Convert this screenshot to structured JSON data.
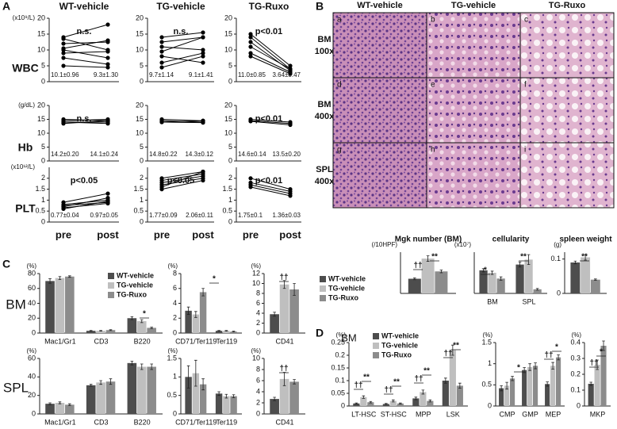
{
  "panels": [
    "A",
    "B",
    "C",
    "D"
  ],
  "histology": {
    "columns": [
      "WT-vehicle",
      "TG-vehicle",
      "TG-Ruxo"
    ],
    "rows": [
      [
        "BM",
        "100x"
      ],
      [
        "BM",
        "400x"
      ],
      [
        "SPL",
        "400x"
      ]
    ],
    "cells": [
      "a",
      "b",
      "c",
      "d",
      "e",
      "f",
      "g",
      "h",
      "i"
    ]
  },
  "chart_data": [
    {
      "type": "line",
      "title": "WT-vehicle",
      "ylabel": "WBC",
      "unit": "(x10⁹/L)",
      "annotation": "n.s.",
      "stats": [
        "10.1±0.96",
        "9.3±1.30"
      ],
      "ylim": [
        0,
        20
      ],
      "yticks": [
        0,
        5,
        10,
        15,
        20
      ],
      "color": "#000000",
      "series": [
        {
          "values": [
            14,
            18
          ]
        },
        {
          "values": [
            13.5,
            10
          ]
        },
        {
          "values": [
            12,
            12.5
          ]
        },
        {
          "values": [
            10.5,
            13
          ]
        },
        {
          "values": [
            10,
            7.5
          ]
        },
        {
          "values": [
            9,
            9.5
          ]
        },
        {
          "values": [
            7.5,
            5.5
          ]
        },
        {
          "values": [
            5,
            4.5
          ]
        }
      ]
    },
    {
      "type": "line",
      "title": "TG-vehicle",
      "annotation": "n.s.",
      "stats": [
        "9.7±1.14",
        "9.1±1.41"
      ],
      "ylim": [
        0,
        20
      ],
      "yticks": [
        0,
        5,
        10,
        15,
        20
      ],
      "color": "#000000",
      "series": [
        {
          "values": [
            14,
            15.5
          ]
        },
        {
          "values": [
            12.5,
            14
          ]
        },
        {
          "values": [
            11,
            10
          ]
        },
        {
          "values": [
            9.5,
            14
          ]
        },
        {
          "values": [
            8,
            6
          ]
        },
        {
          "values": [
            6,
            9
          ]
        },
        {
          "values": [
            4.5,
            8
          ]
        }
      ]
    },
    {
      "type": "line",
      "title": "TG-Ruxo",
      "annotation": "p<0.01",
      "stats": [
        "11.0±0.85",
        "3.64±0.47"
      ],
      "ylim": [
        0,
        20
      ],
      "yticks": [
        0,
        5,
        10,
        15,
        20
      ],
      "color": "#000000",
      "series": [
        {
          "values": [
            15,
            5
          ]
        },
        {
          "values": [
            14,
            4
          ]
        },
        {
          "values": [
            12.5,
            3.5
          ]
        },
        {
          "values": [
            11,
            4
          ]
        },
        {
          "values": [
            9,
            3
          ]
        },
        {
          "values": [
            8,
            2.5
          ]
        }
      ]
    },
    {
      "type": "line",
      "ylabel": "Hb",
      "unit": "(g/dL)",
      "annotation": "n.s.",
      "stats": [
        "14.2±0.20",
        "14.1±0.24"
      ],
      "ylim": [
        0,
        20
      ],
      "yticks": [
        0,
        5,
        10,
        15,
        20
      ],
      "color": "#000000",
      "series": [
        {
          "values": [
            15,
            14.5
          ]
        },
        {
          "values": [
            14.5,
            15
          ]
        },
        {
          "values": [
            14,
            14
          ]
        },
        {
          "values": [
            13.5,
            14.5
          ]
        },
        {
          "values": [
            14,
            13.5
          ]
        }
      ]
    },
    {
      "type": "line",
      "stats": [
        "14.8±0.22",
        "14.3±0.12"
      ],
      "ylim": [
        0,
        20
      ],
      "yticks": [
        0,
        5,
        10,
        15,
        20
      ],
      "color": "#000000",
      "series": [
        {
          "values": [
            15,
            14.5
          ]
        },
        {
          "values": [
            14.5,
            14
          ]
        },
        {
          "values": [
            14,
            14.5
          ]
        },
        {
          "values": [
            14,
            13.8
          ]
        }
      ]
    },
    {
      "type": "line",
      "annotation": "p<0.01",
      "stats": [
        "14.6±0.14",
        "13.5±0.20"
      ],
      "ylim": [
        0,
        20
      ],
      "yticks": [
        0,
        5,
        10,
        15,
        20
      ],
      "color": "#000000",
      "series": [
        {
          "values": [
            15,
            14
          ]
        },
        {
          "values": [
            14.5,
            13.5
          ]
        },
        {
          "values": [
            14.3,
            13
          ]
        }
      ]
    },
    {
      "type": "line",
      "ylabel": "PLT",
      "unit": "(x10¹²/L)",
      "annotation": "p<0.05",
      "stats": [
        "0.77±0.04",
        "0.97±0.05"
      ],
      "categories": [
        "pre",
        "post"
      ],
      "ylim": [
        0,
        2.5
      ],
      "yticks": [
        0,
        0.5,
        1,
        1.5,
        2
      ],
      "color": "#000000",
      "series": [
        {
          "values": [
            0.9,
            1.3
          ]
        },
        {
          "values": [
            0.8,
            1.0
          ]
        },
        {
          "values": [
            0.75,
            0.9
          ]
        },
        {
          "values": [
            0.7,
            1.1
          ]
        },
        {
          "values": [
            0.65,
            0.85
          ]
        },
        {
          "values": [
            0.6,
            0.95
          ]
        }
      ]
    },
    {
      "type": "line",
      "annotation": "p<0.05",
      "stats": [
        "1.77±0.09",
        "2.06±0.11"
      ],
      "categories": [
        "pre",
        "post"
      ],
      "ylim": [
        0,
        2.5
      ],
      "yticks": [
        0,
        0.5,
        1,
        1.5,
        2
      ],
      "color": "#000000",
      "series": [
        {
          "values": [
            2.0,
            2.3
          ]
        },
        {
          "values": [
            1.9,
            2.2
          ]
        },
        {
          "values": [
            1.8,
            2.1
          ]
        },
        {
          "values": [
            1.7,
            2.0
          ]
        },
        {
          "values": [
            1.6,
            2.3
          ]
        },
        {
          "values": [
            1.5,
            1.9
          ]
        }
      ]
    },
    {
      "type": "line",
      "annotation": "p<0.01",
      "stats": [
        "1.75±0.1",
        "1.36±0.03"
      ],
      "categories": [
        "pre",
        "post"
      ],
      "ylim": [
        0,
        2.5
      ],
      "yticks": [
        0,
        0.5,
        1,
        1.5,
        2
      ],
      "color": "#000000",
      "series": [
        {
          "values": [
            2.0,
            1.5
          ]
        },
        {
          "values": [
            1.8,
            1.4
          ]
        },
        {
          "values": [
            1.7,
            1.3
          ]
        },
        {
          "values": [
            1.6,
            1.2
          ]
        }
      ]
    },
    {
      "type": "bar",
      "title": "Mgk number (BM)",
      "unit": "(/10HPF)",
      "ylim": [
        0,
        450
      ],
      "annotations": [
        "††",
        "**"
      ],
      "series": [
        {
          "name": "WT-vehicle",
          "color": "#4d4d4d",
          "values": [
            160
          ],
          "errors": [
            10
          ]
        },
        {
          "name": "TG-vehicle",
          "color": "#bfbfbf",
          "values": [
            380
          ],
          "errors": [
            30
          ]
        },
        {
          "name": "TG-Ruxo",
          "color": "#8c8c8c",
          "values": [
            240
          ],
          "errors": [
            15
          ]
        }
      ]
    },
    {
      "type": "bar",
      "title": "cellularity",
      "unit": "(x10⁷)",
      "categories": [
        "BM",
        "SPL"
      ],
      "ylim": [
        0,
        5
      ],
      "annotations": [
        "*",
        "**"
      ],
      "series": [
        {
          "color": "#4d4d4d",
          "values": [
            2.8,
            3.5
          ],
          "errors": [
            0.2,
            0.3
          ]
        },
        {
          "color": "#bfbfbf",
          "values": [
            2.5,
            4.1
          ],
          "errors": [
            0.2,
            0.6
          ]
        },
        {
          "color": "#8c8c8c",
          "values": [
            1.8,
            0.5
          ],
          "errors": [
            0.2,
            0.1
          ]
        }
      ]
    },
    {
      "type": "bar",
      "title": "spleen weight",
      "unit": "(g)",
      "ylim": [
        0,
        0.12
      ],
      "yticks": [
        0,
        0.1
      ],
      "annotations": [
        "**"
      ],
      "series": [
        {
          "color": "#4d4d4d",
          "values": [
            0.09
          ],
          "errors": [
            0.004
          ]
        },
        {
          "color": "#bfbfbf",
          "values": [
            0.105
          ],
          "errors": [
            0.008
          ]
        },
        {
          "color": "#8c8c8c",
          "values": [
            0.04
          ],
          "errors": [
            0.002
          ]
        }
      ]
    },
    {
      "type": "bar",
      "row_label": "BM",
      "unit": "(%)",
      "categories": [
        "Mac1/Gr1",
        "CD3",
        "B220"
      ],
      "ylim": [
        0,
        80
      ],
      "yticks": [
        0,
        20,
        40,
        60,
        80
      ],
      "annotations": [
        "*"
      ],
      "series": [
        {
          "name": "WT-vehicle",
          "color": "#4d4d4d",
          "values": [
            70,
            3,
            20
          ],
          "errors": [
            3,
            0.5,
            2
          ]
        },
        {
          "name": "TG-vehicle",
          "color": "#bfbfbf",
          "values": [
            74,
            3,
            16
          ],
          "errors": [
            2,
            0.5,
            2
          ]
        },
        {
          "name": "TG-Ruxo",
          "color": "#8c8c8c",
          "values": [
            76,
            4,
            7
          ],
          "errors": [
            1,
            0.5,
            1
          ]
        }
      ]
    },
    {
      "type": "bar",
      "unit": "(%)",
      "categories": [
        "CD71/Ter119",
        "Ter119"
      ],
      "ylim": [
        0,
        8
      ],
      "yticks": [
        0,
        2,
        4,
        6,
        8
      ],
      "annotations": [
        "*"
      ],
      "series": [
        {
          "color": "#4d4d4d",
          "values": [
            3,
            0.3
          ],
          "errors": [
            0.5,
            0.05
          ]
        },
        {
          "color": "#bfbfbf",
          "values": [
            2.5,
            0.3
          ],
          "errors": [
            0.4,
            0.05
          ]
        },
        {
          "color": "#8c8c8c",
          "values": [
            5.5,
            0.2
          ],
          "errors": [
            0.5,
            0.05
          ]
        }
      ]
    },
    {
      "type": "bar",
      "unit": "(%)",
      "categories": [
        "CD41"
      ],
      "ylim": [
        0,
        12
      ],
      "yticks": [
        0,
        2,
        4,
        6,
        8,
        10,
        12
      ],
      "annotations": [
        "††"
      ],
      "series": [
        {
          "color": "#4d4d4d",
          "values": [
            3.8
          ],
          "errors": [
            0.4
          ]
        },
        {
          "color": "#bfbfbf",
          "values": [
            9.8
          ],
          "errors": [
            0.8
          ]
        },
        {
          "color": "#8c8c8c",
          "values": [
            8.8
          ],
          "errors": [
            1.2
          ]
        }
      ]
    },
    {
      "type": "bar",
      "row_label": "SPL",
      "unit": "(%)",
      "categories": [
        "Mac1/Gr1",
        "CD3",
        "B220"
      ],
      "ylim": [
        0,
        60
      ],
      "yticks": [
        0,
        20,
        40,
        60
      ],
      "series": [
        {
          "color": "#4d4d4d",
          "values": [
            11,
            31,
            55
          ],
          "errors": [
            1,
            1,
            2
          ]
        },
        {
          "color": "#bfbfbf",
          "values": [
            12,
            34,
            51
          ],
          "errors": [
            1,
            2,
            3
          ]
        },
        {
          "color": "#8c8c8c",
          "values": [
            10,
            35,
            51
          ],
          "errors": [
            1,
            3,
            3
          ]
        }
      ]
    },
    {
      "type": "bar",
      "unit": "(%)",
      "categories": [
        "CD71/Ter119",
        "Ter119"
      ],
      "ylim": [
        0,
        1.5
      ],
      "yticks": [
        0,
        0.5,
        1,
        1.5
      ],
      "series": [
        {
          "color": "#4d4d4d",
          "values": [
            1.0,
            0.55
          ],
          "errors": [
            0.3,
            0.05
          ]
        },
        {
          "color": "#bfbfbf",
          "values": [
            1.1,
            0.48
          ],
          "errors": [
            0.35,
            0.05
          ]
        },
        {
          "color": "#8c8c8c",
          "values": [
            0.8,
            0.48
          ],
          "errors": [
            0.15,
            0.04
          ]
        }
      ]
    },
    {
      "type": "bar",
      "unit": "(%)",
      "categories": [
        "CD41"
      ],
      "ylim": [
        0,
        10
      ],
      "yticks": [
        0,
        2,
        4,
        6,
        8,
        10
      ],
      "annotations": [
        "††"
      ],
      "series": [
        {
          "color": "#4d4d4d",
          "values": [
            2.7
          ],
          "errors": [
            0.3
          ]
        },
        {
          "color": "#bfbfbf",
          "values": [
            6.3
          ],
          "errors": [
            1.2
          ]
        },
        {
          "color": "#8c8c8c",
          "values": [
            5.8
          ],
          "errors": [
            0.4
          ]
        }
      ]
    },
    {
      "type": "bar",
      "row_label": "BM",
      "unit": "(%)",
      "categories": [
        "LT-HSC",
        "ST-HSC",
        "MPP",
        "LSK"
      ],
      "ylim": [
        0,
        0.25
      ],
      "yticks": [
        0,
        0.05,
        0.1,
        0.15,
        0.2,
        0.25
      ],
      "annotations": [
        "††",
        "**",
        "††",
        "**",
        "††",
        "**",
        "††",
        "**"
      ],
      "series": [
        {
          "name": "WT-vehicle",
          "color": "#4d4d4d",
          "values": [
            0.01,
            0.008,
            0.03,
            0.1
          ],
          "errors": [
            0.002,
            0.002,
            0.005,
            0.01
          ]
        },
        {
          "name": "TG-vehicle",
          "color": "#bfbfbf",
          "values": [
            0.035,
            0.02,
            0.055,
            0.22
          ],
          "errors": [
            0.005,
            0.004,
            0.008,
            0.02
          ]
        },
        {
          "name": "TG-Ruxo",
          "color": "#8c8c8c",
          "values": [
            0.015,
            0.01,
            0.02,
            0.08
          ],
          "errors": [
            0.003,
            0.002,
            0.004,
            0.01
          ]
        }
      ]
    },
    {
      "type": "bar",
      "unit": "(%)",
      "categories": [
        "CMP",
        "GMP",
        "MEP"
      ],
      "ylim": [
        0,
        1.5
      ],
      "yticks": [
        0,
        0.5,
        1,
        1.5
      ],
      "annotations": [
        "*",
        "††",
        "*"
      ],
      "series": [
        {
          "color": "#4d4d4d",
          "values": [
            0.42,
            0.85,
            0.52
          ],
          "errors": [
            0.06,
            0.06,
            0.05
          ]
        },
        {
          "color": "#bfbfbf",
          "values": [
            0.48,
            0.92,
            0.95
          ],
          "errors": [
            0.08,
            0.08,
            0.08
          ]
        },
        {
          "color": "#8c8c8c",
          "values": [
            0.65,
            0.95,
            1.15
          ],
          "errors": [
            0.05,
            0.07,
            0.06
          ]
        }
      ]
    },
    {
      "type": "bar",
      "categories": [
        "MKP"
      ],
      "unit": "(%)",
      "ylim": [
        0,
        0.4
      ],
      "yticks": [
        0,
        0.1,
        0.2,
        0.3,
        0.4
      ],
      "annotations": [
        "††",
        "*"
      ],
      "series": [
        {
          "color": "#4d4d4d",
          "values": [
            0.14
          ],
          "errors": [
            0.01
          ]
        },
        {
          "color": "#bfbfbf",
          "values": [
            0.26
          ],
          "errors": [
            0.03
          ]
        },
        {
          "color": "#8c8c8c",
          "values": [
            0.38
          ],
          "errors": [
            0.03
          ]
        }
      ]
    }
  ]
}
